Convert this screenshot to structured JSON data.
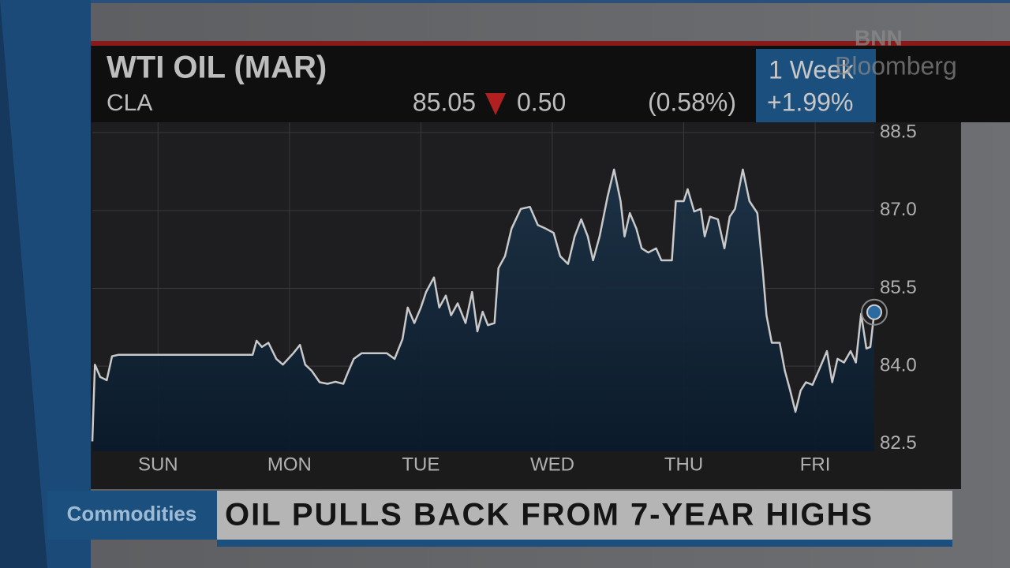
{
  "header": {
    "title": "WTI OIL (MAR)",
    "ticker": "CLA",
    "price": "85.05",
    "change": "0.50",
    "change_pct": "(0.58%)",
    "period": "1 Week",
    "period_change": "+1.99%"
  },
  "brand": {
    "line1": "BNN",
    "line2": "Bloomberg"
  },
  "lower_third": {
    "section": "Commodities",
    "headline": "OIL PULLS BACK FROM 7-YEAR HIGHS"
  },
  "chart_data": {
    "type": "line",
    "color": "#c9c9c9",
    "x": [
      -0.5,
      -0.48,
      -0.44,
      -0.39,
      -0.35,
      -0.3,
      0.72,
      0.75,
      0.79,
      0.84,
      0.9,
      0.95,
      0.99,
      1.03,
      1.08,
      1.12,
      1.17,
      1.23,
      1.29,
      1.35,
      1.41,
      1.45,
      1.49,
      1.55,
      1.62,
      1.74,
      1.8,
      1.86,
      1.9,
      1.95,
      2.0,
      2.04,
      2.1,
      2.14,
      2.19,
      2.23,
      2.28,
      2.34,
      2.39,
      2.43,
      2.47,
      2.51,
      2.56,
      2.59,
      2.64,
      2.69,
      2.76,
      2.83,
      2.89,
      2.95,
      3.01,
      3.06,
      3.12,
      3.17,
      3.22,
      3.27,
      3.31,
      3.36,
      3.42,
      3.47,
      3.52,
      3.55,
      3.59,
      3.64,
      3.68,
      3.73,
      3.79,
      3.83,
      3.91,
      3.94,
      4.0,
      4.03,
      4.08,
      4.13,
      4.16,
      4.2,
      4.26,
      4.31,
      4.35,
      4.39,
      4.45,
      4.5,
      4.56,
      4.6,
      4.63,
      4.67,
      4.73,
      4.77,
      4.81,
      4.85,
      4.89,
      4.93,
      4.98,
      5.04,
      5.09,
      5.13,
      5.17,
      5.22,
      5.27,
      5.31,
      5.35,
      5.39,
      5.42,
      5.45
    ],
    "values": [
      82.55,
      84.03,
      83.79,
      83.73,
      84.19,
      84.22,
      84.22,
      84.49,
      84.37,
      84.45,
      84.14,
      84.03,
      84.14,
      84.25,
      84.41,
      84.03,
      83.91,
      83.69,
      83.66,
      83.7,
      83.66,
      83.91,
      84.14,
      84.25,
      84.25,
      84.25,
      84.14,
      84.52,
      85.13,
      84.83,
      85.13,
      85.43,
      85.71,
      85.13,
      85.36,
      84.98,
      85.21,
      84.83,
      85.43,
      84.67,
      85.05,
      84.79,
      84.83,
      85.89,
      86.12,
      86.65,
      87.03,
      87.07,
      86.72,
      86.65,
      86.57,
      86.12,
      85.97,
      86.5,
      86.83,
      86.5,
      86.04,
      86.5,
      87.26,
      87.79,
      87.18,
      86.5,
      86.95,
      86.65,
      86.27,
      86.19,
      86.27,
      86.04,
      86.04,
      87.18,
      87.18,
      87.41,
      86.98,
      87.03,
      86.5,
      86.88,
      86.83,
      86.27,
      86.88,
      87.03,
      87.79,
      87.18,
      86.95,
      85.89,
      84.98,
      84.45,
      84.45,
      83.91,
      83.53,
      83.12,
      83.53,
      83.69,
      83.64,
      83.99,
      84.29,
      83.69,
      84.14,
      84.07,
      84.29,
      84.07,
      85.01,
      84.34,
      84.37,
      85.04
    ],
    "xlim": [
      -0.5,
      5.45
    ],
    "xticks": [
      {
        "value": 0,
        "label": "SUN"
      },
      {
        "value": 1,
        "label": "MON"
      },
      {
        "value": 2,
        "label": "TUE"
      },
      {
        "value": 3,
        "label": "WED"
      },
      {
        "value": 4,
        "label": "THU"
      },
      {
        "value": 5,
        "label": "FRI"
      }
    ],
    "ylim": [
      82.36,
      88.7
    ],
    "yticks": [
      82.5,
      {
        "value": 84,
        "label": "84.0"
      },
      85.5,
      {
        "value": 87,
        "label": "87.0"
      },
      88.5
    ],
    "grid": true
  }
}
